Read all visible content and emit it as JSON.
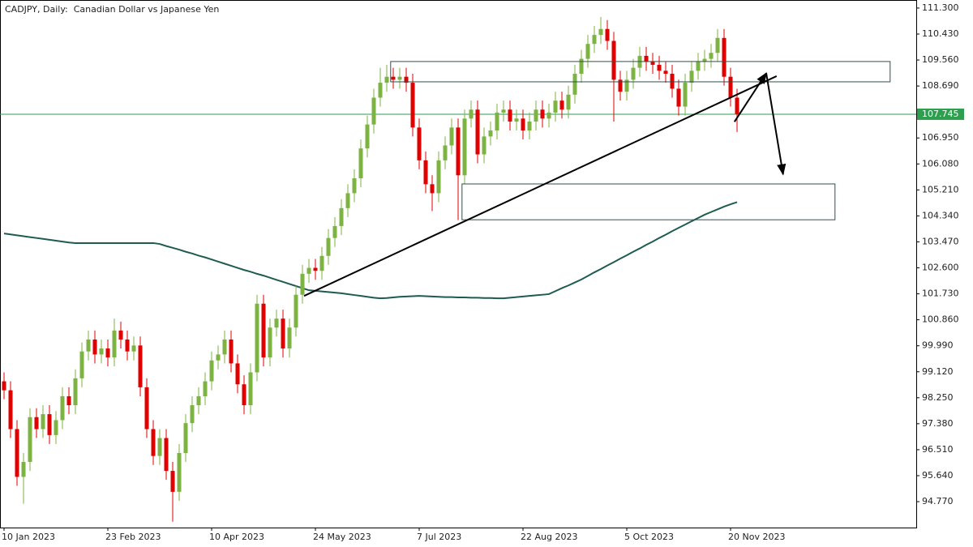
{
  "chart_data": {
    "type": "candlestick",
    "title": "CADJPY, Daily:  Canadian Dollar vs Japanese Yen",
    "categories": [
      "10 Jan 2023",
      null,
      null,
      null,
      null,
      null,
      null,
      null,
      null,
      null,
      null,
      null,
      null,
      null,
      null,
      null,
      "23 Feb 2023",
      null,
      null,
      null,
      null,
      null,
      null,
      null,
      null,
      null,
      null,
      null,
      null,
      null,
      null,
      null,
      "10 Apr 2023",
      null,
      null,
      null,
      null,
      null,
      null,
      null,
      null,
      null,
      null,
      null,
      null,
      null,
      null,
      null,
      "24 May 2023",
      null,
      null,
      null,
      null,
      null,
      null,
      null,
      null,
      null,
      null,
      null,
      null,
      null,
      null,
      null,
      "7 Jul 2023",
      null,
      null,
      null,
      null,
      null,
      null,
      null,
      null,
      null,
      null,
      null,
      null,
      null,
      null,
      null,
      "22 Aug 2023",
      null,
      null,
      null,
      null,
      null,
      null,
      null,
      null,
      null,
      null,
      null,
      null,
      null,
      null,
      null,
      "5 Oct 2023",
      null,
      null,
      null,
      null,
      null,
      null,
      null,
      null,
      null,
      null,
      null,
      null,
      null,
      null,
      null,
      "20 Nov 2023",
      null
    ],
    "open": [
      98.8,
      98.5,
      97.2,
      95.6,
      96.1,
      97.6,
      97.2,
      97.7,
      97.0,
      97.5,
      98.3,
      98.0,
      98.9,
      99.8,
      100.2,
      99.7,
      99.9,
      99.6,
      100.5,
      100.2,
      99.8,
      100.0,
      98.6,
      97.2,
      96.3,
      96.9,
      95.8,
      95.1,
      96.4,
      97.4,
      98.0,
      98.3,
      98.8,
      99.5,
      99.7,
      100.2,
      99.4,
      98.7,
      98.0,
      99.1,
      101.4,
      99.6,
      100.6,
      100.9,
      99.9,
      100.6,
      101.7,
      102.4,
      102.6,
      102.5,
      103.0,
      103.6,
      104.0,
      104.6,
      105.1,
      105.6,
      106.6,
      107.4,
      108.3,
      108.8,
      109.0,
      108.9,
      109.0,
      108.8,
      107.3,
      106.2,
      105.4,
      105.1,
      106.2,
      106.7,
      107.3,
      105.7,
      107.6,
      107.9,
      106.4,
      107.0,
      107.2,
      107.8,
      107.9,
      107.5,
      107.6,
      107.2,
      107.5,
      107.9,
      107.6,
      107.8,
      108.2,
      107.9,
      108.4,
      109.1,
      109.6,
      110.1,
      110.4,
      110.6,
      110.2,
      108.9,
      108.5,
      108.9,
      109.3,
      109.7,
      109.5,
      109.4,
      109.2,
      109.1,
      108.6,
      108.0,
      108.8,
      109.2,
      109.5,
      109.6,
      109.8,
      110.3,
      109.0,
      108.3
    ],
    "high": [
      99.1,
      98.8,
      97.5,
      96.4,
      97.9,
      97.9,
      98.0,
      98.0,
      97.8,
      98.6,
      98.6,
      99.2,
      100.1,
      100.5,
      100.5,
      100.2,
      100.2,
      100.9,
      100.8,
      100.5,
      100.3,
      100.3,
      98.9,
      97.5,
      97.2,
      97.2,
      96.1,
      96.7,
      97.7,
      98.3,
      98.6,
      99.1,
      99.8,
      100.0,
      100.5,
      100.5,
      99.7,
      99.0,
      99.4,
      101.7,
      101.7,
      100.9,
      101.2,
      101.2,
      100.9,
      102.0,
      102.7,
      102.9,
      102.9,
      103.3,
      103.9,
      104.3,
      104.9,
      105.4,
      105.9,
      106.9,
      107.7,
      108.6,
      109.3,
      109.4,
      109.3,
      109.3,
      109.3,
      109.1,
      107.6,
      106.5,
      105.7,
      106.5,
      107.0,
      107.6,
      107.6,
      107.9,
      108.2,
      108.2,
      107.3,
      107.5,
      108.1,
      108.2,
      108.2,
      107.9,
      107.9,
      107.8,
      108.2,
      108.2,
      108.1,
      108.5,
      108.5,
      108.7,
      109.4,
      109.9,
      110.4,
      110.7,
      111.0,
      110.9,
      110.5,
      109.2,
      109.2,
      109.6,
      110.0,
      110.0,
      109.8,
      109.7,
      109.5,
      109.4,
      108.9,
      109.1,
      109.5,
      109.8,
      109.9,
      110.1,
      110.6,
      110.6,
      109.3,
      108.6
    ],
    "low": [
      98.2,
      96.9,
      95.3,
      94.7,
      95.8,
      96.9,
      96.9,
      96.7,
      96.7,
      97.2,
      97.7,
      97.7,
      98.6,
      99.5,
      99.4,
      99.4,
      99.3,
      99.3,
      99.9,
      99.5,
      99.5,
      98.3,
      96.9,
      96.0,
      96.0,
      95.5,
      94.1,
      94.8,
      96.1,
      97.1,
      97.7,
      98.0,
      98.5,
      99.2,
      99.4,
      99.1,
      98.4,
      97.7,
      97.7,
      98.8,
      99.3,
      99.3,
      100.3,
      99.6,
      99.6,
      100.3,
      101.4,
      102.1,
      102.2,
      102.2,
      102.7,
      103.3,
      103.7,
      104.3,
      104.8,
      105.3,
      106.3,
      107.1,
      108.0,
      108.5,
      108.6,
      108.6,
      108.5,
      107.0,
      105.9,
      105.1,
      104.5,
      104.8,
      105.9,
      106.4,
      104.2,
      105.4,
      107.3,
      106.1,
      106.1,
      106.7,
      106.9,
      107.5,
      107.2,
      107.2,
      106.9,
      106.9,
      107.2,
      107.3,
      107.3,
      107.5,
      107.6,
      107.6,
      108.1,
      108.8,
      109.3,
      109.8,
      110.1,
      109.9,
      107.5,
      108.2,
      108.2,
      108.6,
      109.0,
      109.2,
      109.1,
      108.9,
      108.8,
      108.3,
      107.7,
      107.7,
      108.5,
      108.9,
      109.2,
      109.3,
      109.5,
      108.7,
      108.0,
      107.15
    ],
    "close": [
      98.5,
      97.2,
      95.6,
      96.1,
      97.6,
      97.2,
      97.7,
      97.0,
      97.5,
      98.3,
      98.0,
      98.9,
      99.8,
      100.2,
      99.7,
      99.9,
      99.6,
      100.5,
      100.2,
      99.8,
      100.0,
      98.6,
      97.2,
      96.3,
      96.9,
      95.8,
      95.1,
      96.4,
      97.4,
      98.0,
      98.3,
      98.8,
      99.5,
      99.7,
      100.2,
      99.4,
      98.7,
      98.0,
      99.1,
      101.4,
      99.6,
      100.6,
      100.9,
      99.9,
      100.6,
      101.7,
      102.4,
      102.6,
      102.5,
      103.0,
      103.6,
      104.0,
      104.6,
      105.1,
      105.6,
      106.6,
      107.4,
      108.3,
      108.8,
      109.0,
      108.9,
      109.0,
      108.8,
      107.3,
      106.2,
      105.4,
      105.1,
      106.2,
      106.7,
      107.3,
      105.7,
      107.6,
      107.9,
      106.4,
      107.0,
      107.2,
      107.8,
      107.9,
      107.5,
      107.6,
      107.2,
      107.5,
      107.9,
      107.6,
      107.8,
      108.2,
      107.9,
      108.4,
      109.1,
      109.6,
      110.1,
      110.4,
      110.6,
      110.2,
      108.9,
      108.5,
      108.9,
      109.3,
      109.7,
      109.5,
      109.4,
      109.2,
      109.1,
      108.6,
      108.0,
      108.8,
      109.2,
      109.5,
      109.6,
      109.8,
      110.3,
      109.0,
      108.3,
      107.75
    ],
    "up_color": "#7cb342",
    "down_color": "#e00000",
    "ma": {
      "color": "#1e5b50",
      "values": [
        103.75,
        103.72,
        103.69,
        103.66,
        103.63,
        103.6,
        103.57,
        103.54,
        103.51,
        103.48,
        103.45,
        103.43,
        103.43,
        103.43,
        103.43,
        103.43,
        103.43,
        103.43,
        103.43,
        103.43,
        103.43,
        103.43,
        103.43,
        103.43,
        103.4,
        103.33,
        103.27,
        103.21,
        103.14,
        103.08,
        103.01,
        102.95,
        102.88,
        102.81,
        102.74,
        102.67,
        102.6,
        102.53,
        102.47,
        102.4,
        102.34,
        102.27,
        102.2,
        102.13,
        102.06,
        101.99,
        101.92,
        101.85,
        101.83,
        101.81,
        101.79,
        101.77,
        101.75,
        101.72,
        101.69,
        101.66,
        101.63,
        101.6,
        101.58,
        101.59,
        101.61,
        101.63,
        101.64,
        101.65,
        101.66,
        101.65,
        101.64,
        101.63,
        101.62,
        101.62,
        101.61,
        101.61,
        101.6,
        101.6,
        101.59,
        101.59,
        101.58,
        101.58,
        101.6,
        101.62,
        101.64,
        101.66,
        101.68,
        101.7,
        101.72,
        101.82,
        101.92,
        102.01,
        102.11,
        102.21,
        102.33,
        102.45,
        102.56,
        102.68,
        102.79,
        102.91,
        103.02,
        103.14,
        103.25,
        103.37,
        103.48,
        103.6,
        103.71,
        103.83,
        103.94,
        104.05,
        104.16,
        104.27,
        104.38,
        104.47,
        104.56,
        104.65,
        104.73,
        104.8
      ]
    },
    "last_price": {
      "value": 107.745,
      "label": "107.745",
      "color": "#2e9e4f"
    },
    "drawings": {
      "zones": [
        {
          "x": [
            59.6,
            136.6
          ],
          "y": [
            109.51,
            108.83
          ]
        },
        {
          "x": [
            70.6,
            128.1
          ],
          "y": [
            105.41,
            104.21
          ]
        }
      ],
      "lines": [
        {
          "x": [
            46.25,
            119.1
          ],
          "y": [
            101.66,
            109.02
          ],
          "arrow": false
        },
        {
          "x": [
            112.6,
            117.5
          ],
          "y": [
            107.49,
            109.12
          ],
          "arrow": true
        },
        {
          "x": [
            117.5,
            120.1
          ],
          "y": [
            109.12,
            105.73
          ],
          "arrow": true
        }
      ]
    },
    "ylim": [
      93.93,
      111.57
    ],
    "yticks": [
      {
        "value": 94.77,
        "label": "94.770"
      },
      {
        "value": 95.64,
        "label": "95.640"
      },
      {
        "value": 96.51,
        "label": "96.510"
      },
      {
        "value": 97.38,
        "label": "97.380"
      },
      {
        "value": 98.25,
        "label": "98.250"
      },
      {
        "value": 99.12,
        "label": "99.120"
      },
      {
        "value": 99.99,
        "label": "99.990"
      },
      {
        "value": 100.86,
        "label": "100.860"
      },
      {
        "value": 101.73,
        "label": "101.730"
      },
      {
        "value": 102.6,
        "label": "102.600"
      },
      {
        "value": 103.47,
        "label": "103.470"
      },
      {
        "value": 104.34,
        "label": "104.340"
      },
      {
        "value": 105.21,
        "label": "105.210"
      },
      {
        "value": 106.08,
        "label": "106.080"
      },
      {
        "value": 106.95,
        "label": "106.950"
      },
      {
        "value": 108.69,
        "label": "108.690"
      },
      {
        "value": 109.56,
        "label": "109.560"
      },
      {
        "value": 110.43,
        "label": "110.430"
      },
      {
        "value": 111.3,
        "label": "111.300"
      }
    ],
    "grid": false
  }
}
